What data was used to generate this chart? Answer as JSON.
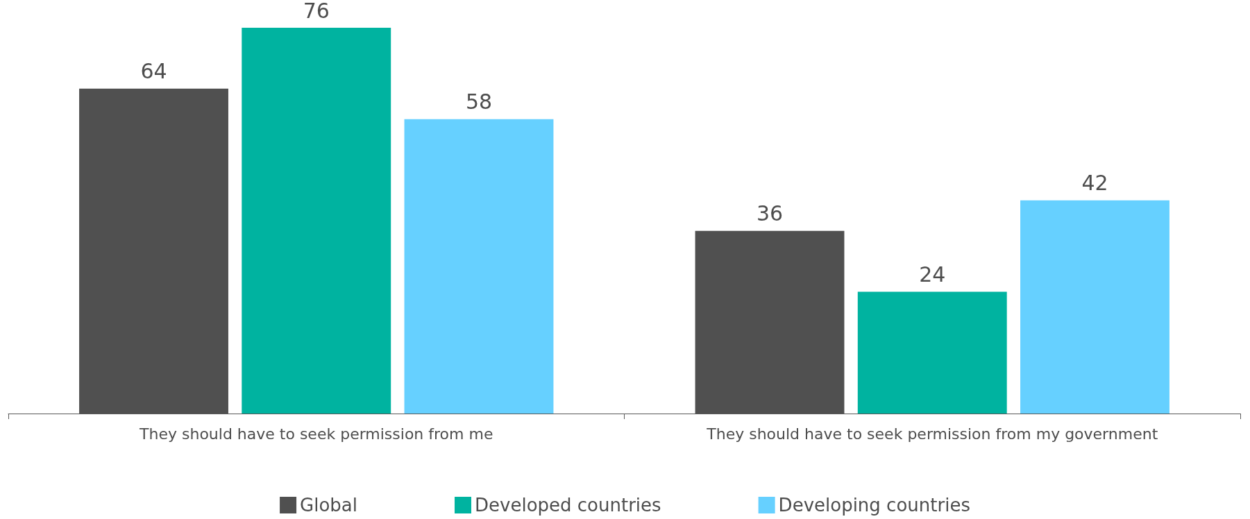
{
  "chart_data": {
    "type": "bar",
    "categories": [
      "They should have to seek permission from me",
      "They should have to seek permission from my government"
    ],
    "series": [
      {
        "name": "Global",
        "color": "#505050",
        "values": [
          64,
          36
        ]
      },
      {
        "name": "Developed countries",
        "color": "#00b3a0",
        "values": [
          76,
          24
        ]
      },
      {
        "name": "Developing countries",
        "color": "#66d0ff",
        "values": [
          58,
          42
        ]
      }
    ],
    "data_labels": true,
    "legend": "bottom"
  }
}
